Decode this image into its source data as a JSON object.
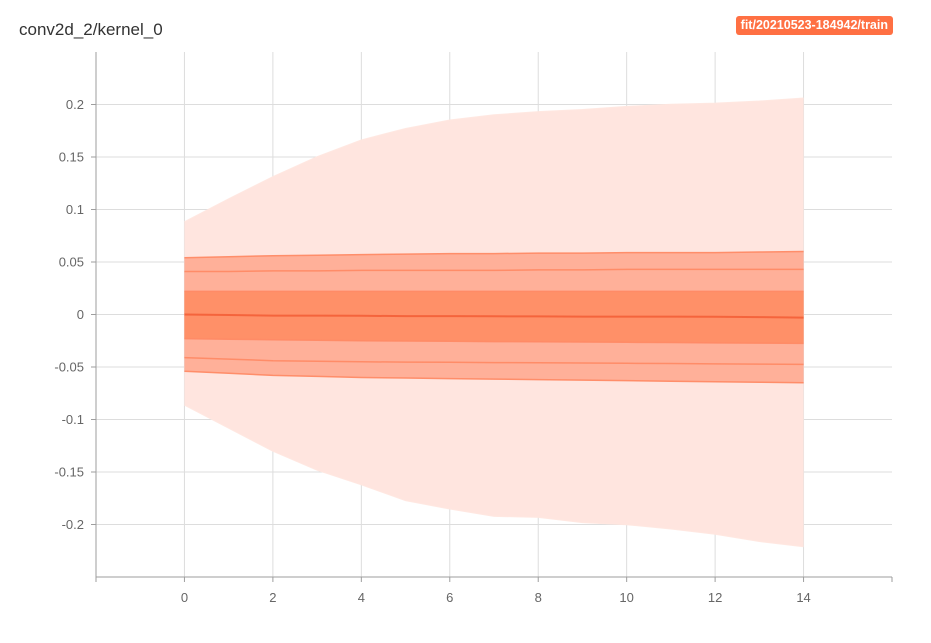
{
  "chart": {
    "title": "conv2d_2/kernel_0",
    "run_label": "fit/20210523-184942/train"
  },
  "colors": {
    "outer_band": "#ffe5df",
    "mid_band": "#ffb099",
    "inner_band": "#ff9068",
    "median_line": "#f4623a",
    "band_edge_line": "#ff8a65",
    "badge": "#ff7043"
  },
  "chart_data": {
    "type": "area",
    "title": "conv2d_2/kernel_0",
    "xlabel": "",
    "ylabel": "",
    "xlim": [
      -2,
      16
    ],
    "ylim": [
      -0.25,
      0.25
    ],
    "xticks": [
      0,
      2,
      4,
      6,
      8,
      10,
      12,
      14
    ],
    "yticks": [
      0.2,
      0.15,
      0.1,
      0.05,
      0,
      -0.05,
      -0.1,
      -0.15,
      -0.2
    ],
    "ytick_labels": [
      "0.2",
      "0.15",
      "0.1",
      "0.05",
      "0",
      "-0.05",
      "-0.1",
      "-0.15",
      "-0.2"
    ],
    "grid": true,
    "legend": "top-right",
    "x": [
      0,
      1,
      2,
      3,
      4,
      5,
      6,
      7,
      8,
      9,
      10,
      11,
      12,
      13,
      14
    ],
    "series": [
      {
        "name": "",
        "values": [
          0.088,
          0.11,
          0.131,
          0.15,
          0.166,
          0.177,
          0.185,
          0.19,
          0.193,
          0.195,
          0.198,
          0.2,
          0.201,
          0.203,
          0.206
        ]
      },
      {
        "name": "",
        "values": [
          0.054,
          0.055,
          0.056,
          0.0565,
          0.057,
          0.0575,
          0.058,
          0.058,
          0.0585,
          0.0585,
          0.059,
          0.059,
          0.059,
          0.0595,
          0.06
        ]
      },
      {
        "name": "",
        "values": [
          0.041,
          0.041,
          0.0415,
          0.0415,
          0.042,
          0.042,
          0.042,
          0.042,
          0.0425,
          0.0425,
          0.043,
          0.043,
          0.043,
          0.043,
          0.043
        ]
      },
      {
        "name": "",
        "values": [
          0.022,
          0.022,
          0.022,
          0.022,
          0.022,
          0.022,
          0.022,
          0.022,
          0.022,
          0.022,
          0.022,
          0.022,
          0.022,
          0.022,
          0.022
        ]
      },
      {
        "name": "",
        "values": [
          0.0,
          -0.0005,
          -0.001,
          -0.001,
          -0.0012,
          -0.0015,
          -0.0015,
          -0.0017,
          -0.0018,
          -0.002,
          -0.002,
          -0.002,
          -0.0022,
          -0.0025,
          -0.003
        ]
      },
      {
        "name": "",
        "values": [
          -0.023,
          -0.0235,
          -0.024,
          -0.0245,
          -0.025,
          -0.0252,
          -0.0255,
          -0.0258,
          -0.026,
          -0.0262,
          -0.0265,
          -0.0267,
          -0.027,
          -0.0272,
          -0.0275
        ]
      },
      {
        "name": "",
        "values": [
          -0.041,
          -0.0425,
          -0.044,
          -0.0445,
          -0.045,
          -0.0453,
          -0.0455,
          -0.0458,
          -0.046,
          -0.0462,
          -0.0465,
          -0.0467,
          -0.047,
          -0.0472,
          -0.0475
        ]
      },
      {
        "name": "",
        "values": [
          -0.054,
          -0.056,
          -0.058,
          -0.059,
          -0.06,
          -0.0605,
          -0.061,
          -0.0615,
          -0.062,
          -0.0625,
          -0.063,
          -0.0635,
          -0.064,
          -0.0645,
          -0.065
        ]
      },
      {
        "name": "",
        "values": [
          -0.086,
          -0.108,
          -0.13,
          -0.148,
          -0.162,
          -0.177,
          -0.185,
          -0.192,
          -0.193,
          -0.198,
          -0.2,
          -0.204,
          -0.209,
          -0.216,
          -0.221
        ]
      }
    ]
  }
}
